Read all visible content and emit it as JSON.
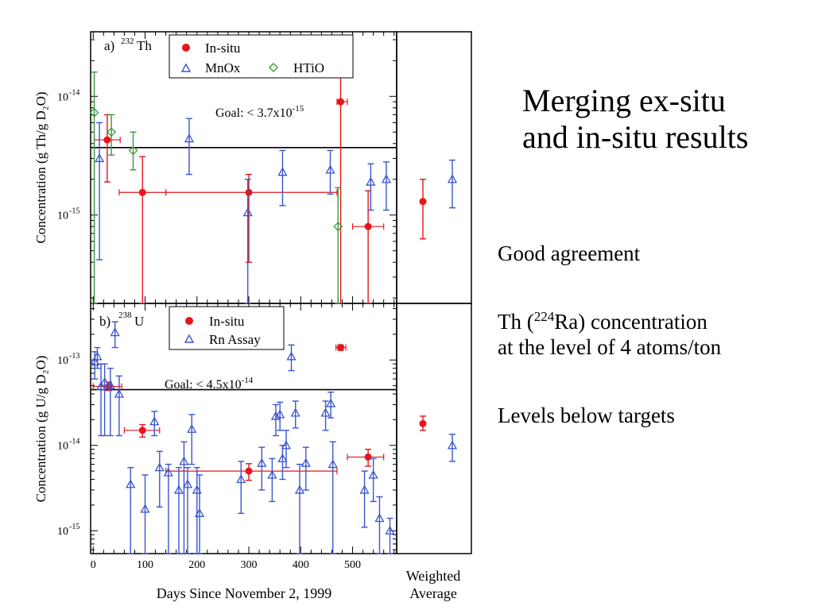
{
  "slide": {
    "title_line1": "Merging ex-situ",
    "title_line2": "and in-situ results",
    "bullets": {
      "b1": "Good agreement",
      "b2_pre": "Th (",
      "b2_sup": "224",
      "b2_mid": "Ra) concentration",
      "b2_line2": "at the level of 4 atoms/ton",
      "b3": "Levels below targets"
    }
  },
  "chart_data": [
    {
      "type": "scatter",
      "panel_label": "a)",
      "isotope_sup": "232",
      "isotope": "Th",
      "ylabel": "Concentration (g Th/g D₂O)",
      "yscale": "log",
      "ylim": [
        1.8e-16,
        3.5e-14
      ],
      "xlim": [
        -5,
        585
      ],
      "ytick_labels": [
        {
          "value": 1e-14,
          "mant": "10",
          "exp": "-14"
        },
        {
          "value": 1e-15,
          "mant": "10",
          "exp": "-15"
        }
      ],
      "goal": {
        "value": 3.7e-15,
        "text": "Goal: < 3.7x10",
        "exp": "-15"
      },
      "legend": [
        {
          "name": "In-situ",
          "marker": "circle",
          "color": "#e8141a"
        },
        {
          "name": "MnOx",
          "marker": "triangle",
          "color": "#3a55d0"
        },
        {
          "name": "HTiO",
          "marker": "diamond",
          "color": "#3a9a3a"
        }
      ],
      "series": [
        {
          "name": "In-situ",
          "marker": "circle",
          "color": "#e8141a",
          "points": [
            {
              "x": 27,
              "y": 4.3e-15,
              "lo": 1.9e-15,
              "hi": 7e-15,
              "xlo": 2,
              "xhi": 52
            },
            {
              "x": 95,
              "y": 1.55e-15,
              "lo": 1.3e-16,
              "hi": 3.1e-15,
              "xlo": 50,
              "xhi": 140
            },
            {
              "x": 300,
              "y": 1.55e-15,
              "lo": 4e-16,
              "hi": 2.2e-15,
              "xlo": 140,
              "xhi": 470
            },
            {
              "x": 477,
              "y": 9e-15,
              "lo": 1.8e-16,
              "hi": 1.8e-14,
              "xlo": 470,
              "xhi": 490
            },
            {
              "x": 530,
              "y": 8e-16,
              "lo": 1.8e-16,
              "hi": 1.6e-15,
              "xlo": 500,
              "xhi": 560
            }
          ]
        },
        {
          "name": "MnOx",
          "marker": "triangle",
          "color": "#3a55d0",
          "points": [
            {
              "x": 12,
              "y": 3e-15,
              "lo": 4.2e-16,
              "hi": 6e-15
            },
            {
              "x": 185,
              "y": 4.4e-15,
              "lo": 2.2e-15,
              "hi": 6.5e-15
            },
            {
              "x": 298,
              "y": 1.05e-15,
              "lo": 1.8e-16,
              "hi": 2e-15
            },
            {
              "x": 365,
              "y": 2.3e-15,
              "lo": 1.2e-15,
              "hi": 3.5e-15
            },
            {
              "x": 457,
              "y": 2.4e-15,
              "lo": 1.5e-15,
              "hi": 3.5e-15
            },
            {
              "x": 535,
              "y": 1.9e-15,
              "lo": 1.1e-15,
              "hi": 2.7e-15
            },
            {
              "x": 565,
              "y": 2e-15,
              "lo": 1.1e-15,
              "hi": 2.8e-15
            }
          ]
        },
        {
          "name": "HTiO",
          "marker": "diamond",
          "color": "#3a9a3a",
          "points": [
            {
              "x": 2,
              "y": 7.3e-15,
              "lo": 1.8e-16,
              "hi": 1.6e-14
            },
            {
              "x": 35,
              "y": 5e-15,
              "lo": 3.2e-15,
              "hi": 7e-15
            },
            {
              "x": 77,
              "y": 3.5e-15,
              "lo": 2.4e-15,
              "hi": 5e-15
            },
            {
              "x": 472,
              "y": 8e-16,
              "lo": 1.8e-16,
              "hi": 1.7e-15
            }
          ]
        }
      ],
      "weighted_average": [
        {
          "name": "In-situ",
          "marker": "circle",
          "color": "#e8141a",
          "y": 1.3e-15,
          "lo": 6.3e-16,
          "hi": 2e-15
        },
        {
          "name": "MnOx",
          "marker": "triangle",
          "color": "#3a55d0",
          "y": 2e-15,
          "lo": 1.15e-15,
          "hi": 2.9e-15
        }
      ]
    },
    {
      "type": "scatter",
      "panel_label": "b)",
      "isotope_sup": "238",
      "isotope": "U",
      "ylabel": "Concentration (g U/g D₂O)",
      "xlabel": "Days Since November 2, 1999",
      "yscale": "log",
      "ylim": [
        5.4e-16,
        4.6e-13
      ],
      "xlim": [
        -5,
        585
      ],
      "ytick_labels": [
        {
          "value": 1e-13,
          "mant": "10",
          "exp": "-13"
        },
        {
          "value": 1e-14,
          "mant": "10",
          "exp": "-14"
        },
        {
          "value": 1e-15,
          "mant": "10",
          "exp": "-15"
        }
      ],
      "xticks": [
        0,
        100,
        200,
        300,
        400,
        500
      ],
      "goal": {
        "value": 4.5e-14,
        "text": "Goal: < 4.5x10",
        "exp": "-14"
      },
      "legend": [
        {
          "name": "In-situ",
          "marker": "circle",
          "color": "#e8141a"
        },
        {
          "name": "Rn Assay",
          "marker": "triangle",
          "color": "#3a55d0"
        }
      ],
      "weighted_label_1": "Weighted",
      "weighted_label_2": "Average",
      "series": [
        {
          "name": "In-situ",
          "marker": "circle",
          "color": "#e8141a",
          "points": [
            {
              "x": 30,
              "y": 4.9e-14,
              "lo": 4.4e-14,
              "hi": 5.5e-14,
              "xlo": 0,
              "xhi": 55
            },
            {
              "x": 95,
              "y": 1.5e-14,
              "lo": 1.25e-14,
              "hi": 1.75e-14,
              "xlo": 60,
              "xhi": 128
            },
            {
              "x": 300,
              "y": 5e-15,
              "lo": 3.9e-15,
              "hi": 6.1e-15,
              "xlo": 140,
              "xhi": 470
            },
            {
              "x": 477,
              "y": 1.4e-13,
              "lo": 1.3e-13,
              "hi": 1.5e-13,
              "xlo": 468,
              "xhi": 487
            },
            {
              "x": 530,
              "y": 7.3e-15,
              "lo": 5.7e-15,
              "hi": 9e-15,
              "xlo": 490,
              "xhi": 560
            }
          ]
        },
        {
          "name": "Rn Assay",
          "marker": "triangle",
          "color": "#3a55d0",
          "points": [
            {
              "x": 3,
              "y": 9.5e-14,
              "lo": 6e-14,
              "hi": 1.25e-13
            },
            {
              "x": 8,
              "y": 1.1e-13,
              "lo": 8e-14,
              "hi": 1.4e-13
            },
            {
              "x": 15,
              "y": 4.9e-14,
              "lo": 1.3e-14,
              "hi": 9e-14
            },
            {
              "x": 22,
              "y": 5.5e-14,
              "lo": 1.3e-14,
              "hi": 9e-14
            },
            {
              "x": 33,
              "y": 5.1e-14,
              "lo": 1.3e-14,
              "hi": 8e-14
            },
            {
              "x": 42,
              "y": 2.1e-13,
              "lo": 1.4e-13,
              "hi": 2.8e-13
            },
            {
              "x": 50,
              "y": 4e-14,
              "lo": 1.3e-14,
              "hi": 6.5e-14
            },
            {
              "x": 72,
              "y": 3.5e-15,
              "lo": 5.4e-16,
              "hi": 5.5e-15
            },
            {
              "x": 100,
              "y": 1.8e-15,
              "lo": 5.4e-16,
              "hi": 4.5e-15
            },
            {
              "x": 118,
              "y": 1.9e-14,
              "lo": 1.3e-14,
              "hi": 2.5e-14
            },
            {
              "x": 128,
              "y": 5.5e-15,
              "lo": 1.9e-15,
              "hi": 8.5e-15
            },
            {
              "x": 145,
              "y": 4.8e-15,
              "lo": 5.4e-16,
              "hi": 6e-15
            },
            {
              "x": 165,
              "y": 3e-15,
              "lo": 5.4e-16,
              "hi": 5.5e-15
            },
            {
              "x": 175,
              "y": 6.5e-15,
              "lo": 5.4e-16,
              "hi": 1.1e-14
            },
            {
              "x": 182,
              "y": 3.5e-15,
              "lo": 5.4e-16,
              "hi": 5.5e-15
            },
            {
              "x": 190,
              "y": 1.55e-14,
              "lo": 6e-15,
              "hi": 2.3e-14
            },
            {
              "x": 200,
              "y": 3e-15,
              "lo": 5.4e-16,
              "hi": 5.5e-15
            },
            {
              "x": 205,
              "y": 1.6e-15,
              "lo": 5.4e-16,
              "hi": 4.5e-15
            },
            {
              "x": 285,
              "y": 4e-15,
              "lo": 1.6e-15,
              "hi": 6.5e-15
            },
            {
              "x": 325,
              "y": 6.2e-15,
              "lo": 3e-15,
              "hi": 9.5e-15
            },
            {
              "x": 345,
              "y": 4.5e-15,
              "lo": 2.2e-15,
              "hi": 7e-15
            },
            {
              "x": 352,
              "y": 2.2e-14,
              "lo": 1.3e-14,
              "hi": 3e-14
            },
            {
              "x": 360,
              "y": 2.3e-14,
              "lo": 1.5e-14,
              "hi": 3.2e-14
            },
            {
              "x": 365,
              "y": 7e-15,
              "lo": 4e-15,
              "hi": 1e-14
            },
            {
              "x": 372,
              "y": 1e-14,
              "lo": 5.5e-15,
              "hi": 1.5e-14
            },
            {
              "x": 382,
              "y": 1.1e-13,
              "lo": 7.5e-14,
              "hi": 1.5e-13
            },
            {
              "x": 390,
              "y": 2.4e-14,
              "lo": 1.6e-14,
              "hi": 3.3e-14
            },
            {
              "x": 398,
              "y": 3e-15,
              "lo": 5.4e-16,
              "hi": 6e-15
            },
            {
              "x": 410,
              "y": 6.2e-15,
              "lo": 3e-15,
              "hi": 9.5e-15
            },
            {
              "x": 448,
              "y": 2.4e-14,
              "lo": 1.5e-14,
              "hi": 3.3e-14
            },
            {
              "x": 458,
              "y": 3.1e-14,
              "lo": 2.1e-14,
              "hi": 4.2e-14
            },
            {
              "x": 462,
              "y": 6e-15,
              "lo": 5.4e-16,
              "hi": 1.1e-14
            },
            {
              "x": 523,
              "y": 3e-15,
              "lo": 1.1e-15,
              "hi": 5e-15
            },
            {
              "x": 540,
              "y": 4.5e-15,
              "lo": 2.2e-15,
              "hi": 7e-15
            },
            {
              "x": 552,
              "y": 1.4e-15,
              "lo": 5.4e-16,
              "hi": 2.5e-15
            },
            {
              "x": 572,
              "y": 1e-15,
              "lo": 5.4e-16,
              "hi": 1.4e-15
            }
          ]
        }
      ],
      "weighted_average": [
        {
          "name": "In-situ",
          "marker": "circle",
          "color": "#e8141a",
          "y": 1.8e-14,
          "lo": 1.5e-14,
          "hi": 2.2e-14
        },
        {
          "name": "Rn Assay",
          "marker": "triangle",
          "color": "#3a55d0",
          "y": 1e-14,
          "lo": 6.5e-15,
          "hi": 1.35e-14
        }
      ]
    }
  ]
}
